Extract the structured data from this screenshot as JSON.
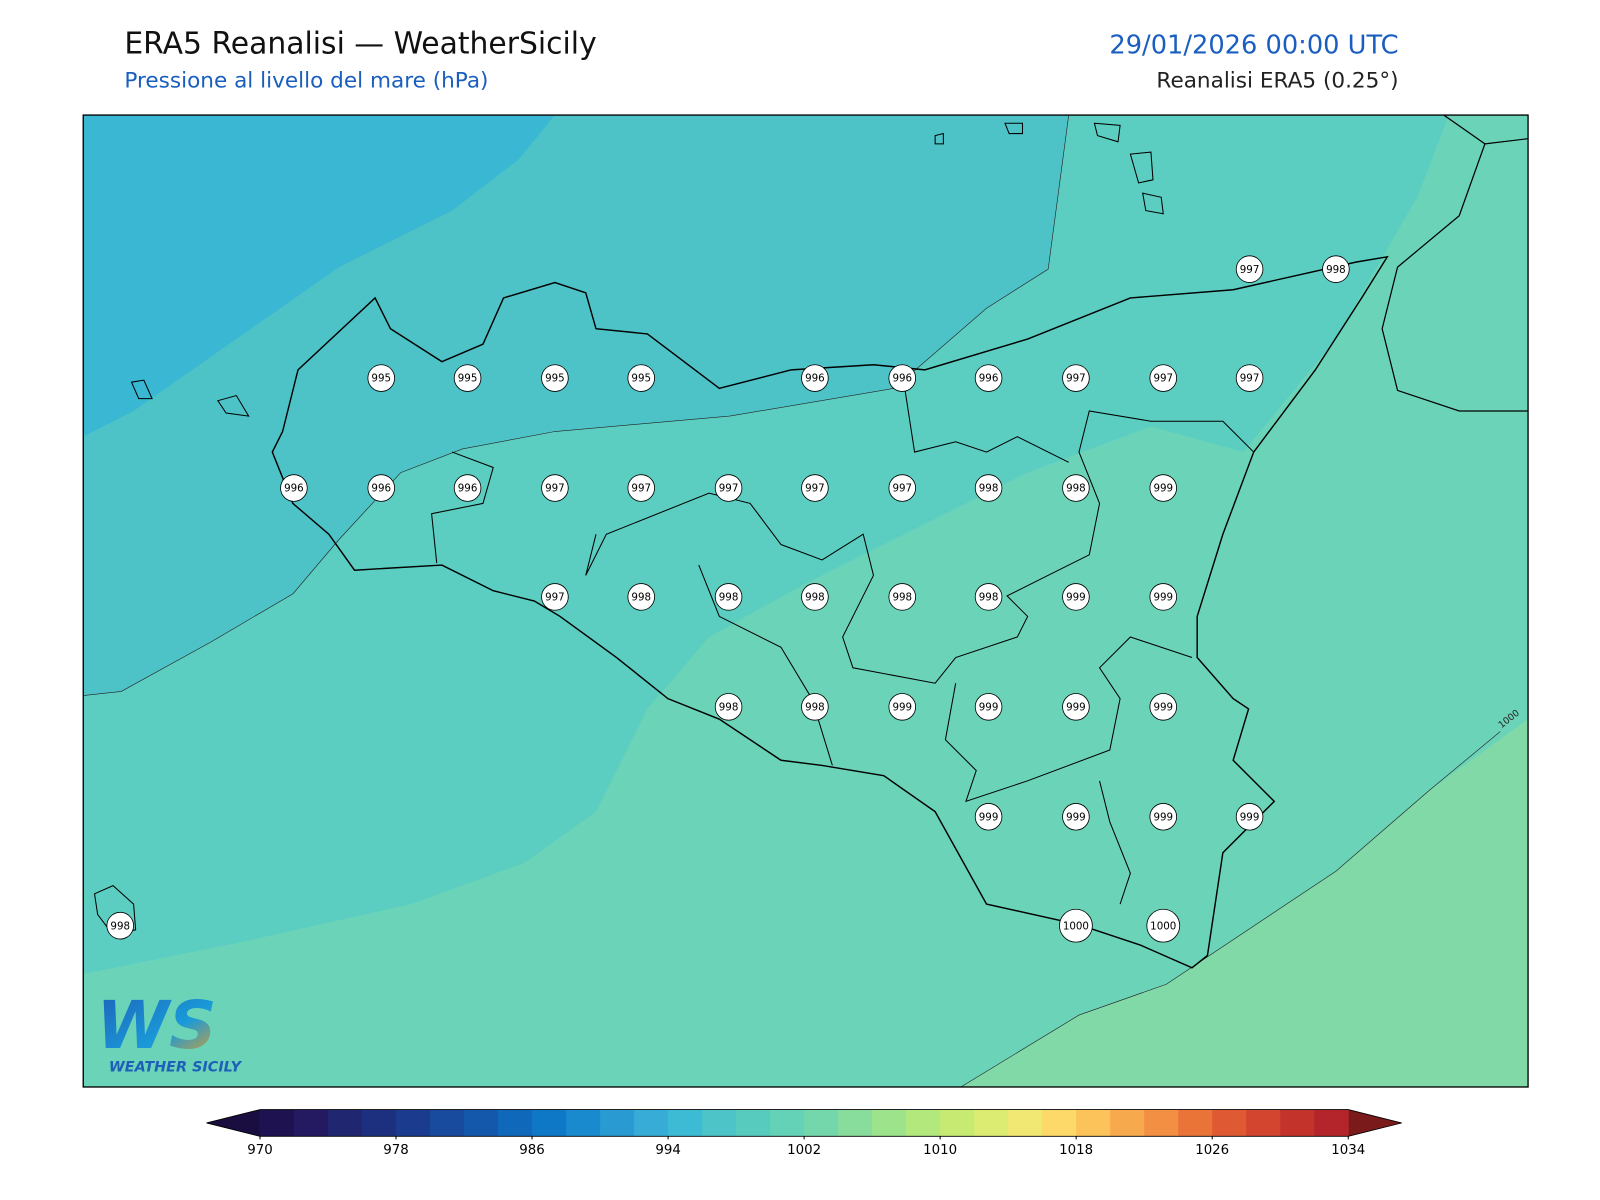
{
  "header": {
    "title": "ERA5 Reanalisi — WeatherSicily",
    "subtitle": "Pressione al livello del mare (hPa)",
    "datetime": "29/01/2026 00:00 UTC",
    "source": "Reanalisi ERA5 (0.25°)"
  },
  "map": {
    "contour_label": "1000",
    "stations": [
      995,
      995,
      995,
      995,
      996,
      996,
      996,
      997,
      997,
      997,
      997,
      998,
      996,
      996,
      996,
      997,
      997,
      997,
      997,
      997,
      998,
      998,
      999,
      997,
      998,
      998,
      998,
      998,
      998,
      999,
      999,
      998,
      998,
      999,
      999,
      999,
      999,
      999,
      999,
      999,
      999,
      998,
      1000,
      1000
    ]
  },
  "colorbar": {
    "lim": [
      970,
      1034
    ],
    "ticks": [
      970,
      978,
      986,
      994,
      1002,
      1010,
      1018,
      1026,
      1034
    ],
    "under_color": "#1a0d40",
    "over_color": "#7a1a1a",
    "colors": [
      "#1f1250",
      "#231a62",
      "#202670",
      "#1d307f",
      "#1b3c8e",
      "#184a9d",
      "#1458ac",
      "#1068ba",
      "#0f78c6",
      "#1a8acf",
      "#2a9ad3",
      "#36acd6",
      "#3ebbd4",
      "#4cc4c8",
      "#58cbbf",
      "#64d2b6",
      "#74d7ab",
      "#88dc9c",
      "#9de38b",
      "#b3e87c",
      "#c7ea72",
      "#dcec72",
      "#f0e872",
      "#fcd968",
      "#fbc35a",
      "#f7a94e",
      "#f28f42",
      "#ea7438",
      "#df5a33",
      "#d3452f",
      "#c4322c",
      "#b3252a"
    ]
  },
  "logo": {
    "mark": "WS",
    "name": "WEATHER SICILY"
  }
}
